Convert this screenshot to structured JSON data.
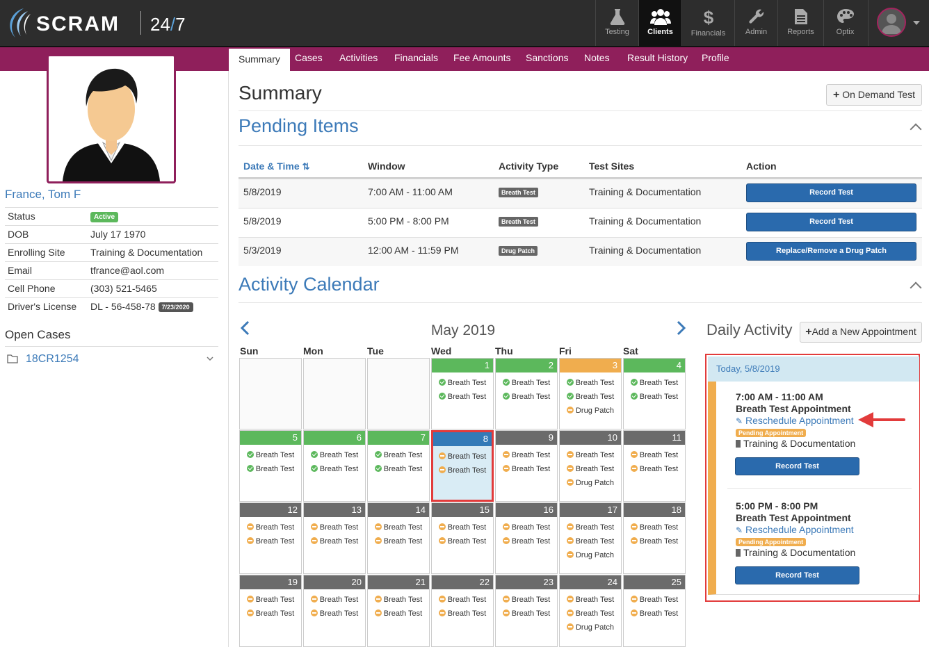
{
  "app": {
    "brand": "SCRAM",
    "suffix_num": "24",
    "suffix_slash": "/",
    "suffix_num2": "7"
  },
  "topnav": [
    {
      "label": "Testing",
      "icon": "flask-icon"
    },
    {
      "label": "Clients",
      "icon": "users-icon"
    },
    {
      "label": "Financials",
      "icon": "dollar-icon"
    },
    {
      "label": "Admin",
      "icon": "wrench-icon"
    },
    {
      "label": "Reports",
      "icon": "document-icon"
    },
    {
      "label": "Optix",
      "icon": "palette-icon"
    }
  ],
  "tabs": [
    "Summary",
    "Cases",
    "Activities",
    "Financials",
    "Fee Amounts",
    "Sanctions",
    "Notes",
    "Result History",
    "Profile"
  ],
  "client": {
    "name": "France, Tom F",
    "info": [
      {
        "label": "Status",
        "value": "",
        "badge": "Active"
      },
      {
        "label": "DOB",
        "value": "July 17 1970",
        "badge": ""
      },
      {
        "label": "Enrolling Site",
        "value": "Training & Documentation",
        "badge": ""
      },
      {
        "label": "Email",
        "value": "tfrance@aol.com",
        "badge": ""
      },
      {
        "label": "Cell Phone",
        "value": "(303) 521-5465",
        "badge": ""
      },
      {
        "label": "Driver's License",
        "value": "DL - 56-458-78",
        "badge": "7/23/2020"
      }
    ],
    "open_cases_label": "Open Cases",
    "case_number": "18CR1254"
  },
  "summary": {
    "title": "Summary",
    "on_demand_label": "On Demand Test"
  },
  "pending": {
    "title": "Pending Items",
    "headers": {
      "date": "Date & Time",
      "window": "Window",
      "activity": "Activity Type",
      "sites": "Test Sites",
      "action": "Action"
    },
    "rows": [
      {
        "date": "5/8/2019",
        "window": "7:00 AM - 11:00 AM",
        "type": "Breath Test",
        "site": "Training & Documentation",
        "action": "Record Test"
      },
      {
        "date": "5/8/2019",
        "window": "5:00 PM - 8:00 PM",
        "type": "Breath Test",
        "site": "Training & Documentation",
        "action": "Record Test"
      },
      {
        "date": "5/3/2019",
        "window": "12:00 AM - 11:59 PM",
        "type": "Drug Patch",
        "site": "Training & Documentation",
        "action": "Replace/Remove a Drug Patch"
      }
    ]
  },
  "calendar": {
    "title": "Activity Calendar",
    "month": "May 2019",
    "daynames": [
      "Sun",
      "Mon",
      "Tue",
      "Wed",
      "Thu",
      "Fri",
      "Sat"
    ],
    "weeks": [
      [
        null,
        null,
        null,
        {
          "day": "1",
          "status": "green",
          "events": [
            [
              "g",
              "Breath Test"
            ],
            [
              "g",
              "Breath Test"
            ]
          ]
        },
        {
          "day": "2",
          "status": "green",
          "events": [
            [
              "g",
              "Breath Test"
            ],
            [
              "g",
              "Breath Test"
            ]
          ]
        },
        {
          "day": "3",
          "status": "orange",
          "events": [
            [
              "g",
              "Breath Test"
            ],
            [
              "g",
              "Breath Test"
            ],
            [
              "o",
              "Drug Patch"
            ]
          ]
        },
        {
          "day": "4",
          "status": "green",
          "events": [
            [
              "g",
              "Breath Test"
            ],
            [
              "g",
              "Breath Test"
            ]
          ]
        }
      ],
      [
        {
          "day": "5",
          "status": "green",
          "events": [
            [
              "g",
              "Breath Test"
            ],
            [
              "g",
              "Breath Test"
            ]
          ]
        },
        {
          "day": "6",
          "status": "green",
          "events": [
            [
              "g",
              "Breath Test"
            ],
            [
              "g",
              "Breath Test"
            ]
          ]
        },
        {
          "day": "7",
          "status": "green",
          "events": [
            [
              "g",
              "Breath Test"
            ],
            [
              "g",
              "Breath Test"
            ]
          ]
        },
        {
          "day": "8",
          "status": "blue",
          "today": true,
          "events": [
            [
              "o",
              "Breath Test"
            ],
            [
              "o",
              "Breath Test"
            ]
          ]
        },
        {
          "day": "9",
          "status": "gray",
          "events": [
            [
              "o",
              "Breath Test"
            ],
            [
              "o",
              "Breath Test"
            ]
          ]
        },
        {
          "day": "10",
          "status": "gray",
          "events": [
            [
              "o",
              "Breath Test"
            ],
            [
              "o",
              "Breath Test"
            ],
            [
              "o",
              "Drug Patch"
            ]
          ]
        },
        {
          "day": "11",
          "status": "gray",
          "events": [
            [
              "o",
              "Breath Test"
            ],
            [
              "o",
              "Breath Test"
            ]
          ]
        }
      ],
      [
        {
          "day": "12",
          "status": "gray",
          "events": [
            [
              "o",
              "Breath Test"
            ],
            [
              "o",
              "Breath Test"
            ]
          ]
        },
        {
          "day": "13",
          "status": "gray",
          "events": [
            [
              "o",
              "Breath Test"
            ],
            [
              "o",
              "Breath Test"
            ]
          ]
        },
        {
          "day": "14",
          "status": "gray",
          "events": [
            [
              "o",
              "Breath Test"
            ],
            [
              "o",
              "Breath Test"
            ]
          ]
        },
        {
          "day": "15",
          "status": "gray",
          "events": [
            [
              "o",
              "Breath Test"
            ],
            [
              "o",
              "Breath Test"
            ]
          ]
        },
        {
          "day": "16",
          "status": "gray",
          "events": [
            [
              "o",
              "Breath Test"
            ],
            [
              "o",
              "Breath Test"
            ]
          ]
        },
        {
          "day": "17",
          "status": "gray",
          "events": [
            [
              "o",
              "Breath Test"
            ],
            [
              "o",
              "Breath Test"
            ],
            [
              "o",
              "Drug Patch"
            ]
          ]
        },
        {
          "day": "18",
          "status": "gray",
          "events": [
            [
              "o",
              "Breath Test"
            ],
            [
              "o",
              "Breath Test"
            ]
          ]
        }
      ],
      [
        {
          "day": "19",
          "status": "gray",
          "events": [
            [
              "o",
              "Breath Test"
            ],
            [
              "o",
              "Breath Test"
            ]
          ]
        },
        {
          "day": "20",
          "status": "gray",
          "events": [
            [
              "o",
              "Breath Test"
            ],
            [
              "o",
              "Breath Test"
            ]
          ]
        },
        {
          "day": "21",
          "status": "gray",
          "events": [
            [
              "o",
              "Breath Test"
            ],
            [
              "o",
              "Breath Test"
            ]
          ]
        },
        {
          "day": "22",
          "status": "gray",
          "events": [
            [
              "o",
              "Breath Test"
            ],
            [
              "o",
              "Breath Test"
            ]
          ]
        },
        {
          "day": "23",
          "status": "gray",
          "events": [
            [
              "o",
              "Breath Test"
            ],
            [
              "o",
              "Breath Test"
            ]
          ]
        },
        {
          "day": "24",
          "status": "gray",
          "events": [
            [
              "o",
              "Breath Test"
            ],
            [
              "o",
              "Breath Test"
            ],
            [
              "o",
              "Drug Patch"
            ]
          ]
        },
        {
          "day": "25",
          "status": "gray",
          "events": [
            [
              "o",
              "Breath Test"
            ],
            [
              "o",
              "Breath Test"
            ]
          ]
        }
      ]
    ]
  },
  "daily": {
    "title": "Daily Activity",
    "add_label": "Add a New Appointment",
    "today_label": "Today, 5/8/2019",
    "appointments": [
      {
        "time": "7:00 AM - 11:00 AM",
        "title": "Breath Test Appointment",
        "reschedule": "Reschedule Appointment",
        "badge": "Pending Appointment",
        "site": "Training & Documentation",
        "action": "Record Test"
      },
      {
        "time": "5:00 PM - 8:00 PM",
        "title": "Breath Test Appointment",
        "reschedule": "Reschedule Appointment",
        "badge": "Pending Appointment",
        "site": "Training & Documentation",
        "action": "Record Test"
      }
    ]
  },
  "colors": {
    "brand_magenta": "#8f1f5b",
    "link_blue": "#3c7ab8",
    "primary_blue": "#2a6aad",
    "green": "#5cb85c",
    "orange": "#f0ad4e",
    "highlight_red": "#e23b3b"
  }
}
